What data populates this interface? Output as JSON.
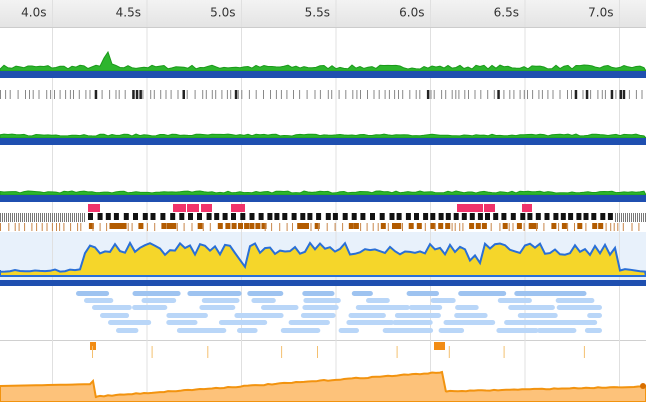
{
  "ruler": {
    "labels": [
      "4.0s",
      "4.5s",
      "5.0s",
      "5.5s",
      "6.0s",
      "6.5s",
      "7.0s"
    ]
  }
}
